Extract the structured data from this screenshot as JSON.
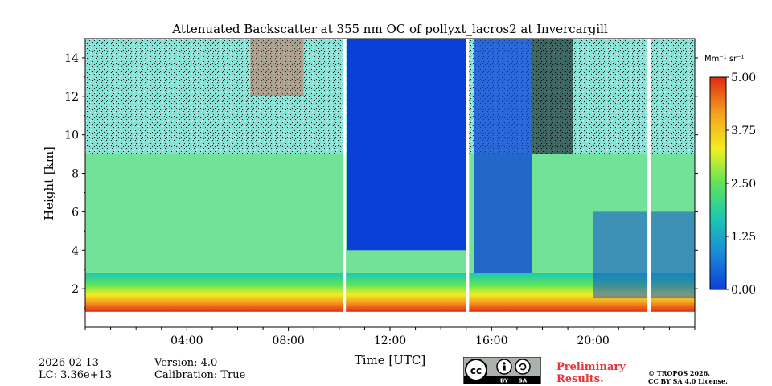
{
  "chart_data": {
    "type": "heatmap",
    "title": "Attenuated Backscatter at 355 nm OC of pollyxt_lacros2 at Invercargill",
    "xlabel": "Time [UTC]",
    "ylabel": "Height [km]",
    "x_range_hours": [
      0,
      24
    ],
    "y_range_km": [
      0,
      15
    ],
    "x_ticks": [
      {
        "value": 4,
        "label": "04:00"
      },
      {
        "value": 8,
        "label": "08:00"
      },
      {
        "value": 12,
        "label": "12:00"
      },
      {
        "value": 16,
        "label": "16:00"
      },
      {
        "value": 20,
        "label": "20:00"
      }
    ],
    "y_ticks": [
      {
        "value": 2,
        "label": "2"
      },
      {
        "value": 4,
        "label": "4"
      },
      {
        "value": 6,
        "label": "6"
      },
      {
        "value": 8,
        "label": "8"
      },
      {
        "value": 10,
        "label": "10"
      },
      {
        "value": 12,
        "label": "12"
      },
      {
        "value": 14,
        "label": "14"
      }
    ],
    "colorbar": {
      "unit": "Mm⁻¹ sr⁻¹",
      "range": [
        0,
        5
      ],
      "ticks": [
        "0.00",
        "1.25",
        "2.50",
        "3.75",
        "5.00"
      ],
      "colormap": [
        "#0a3fd8",
        "#1a8fd8",
        "#1fc8b0",
        "#5ee35a",
        "#f0f020",
        "#f5a020",
        "#e02a10"
      ]
    },
    "features": {
      "blue_low_signal_window_hours": [
        10.3,
        15.1
      ],
      "data_gaps_hours": [
        10.2,
        15.05,
        22.2
      ],
      "surface_layer_top_km": 2.5
    }
  },
  "info": {
    "date": "2026-02-13",
    "lc": "LC: 3.36e+13",
    "version": "Version: 4.0",
    "calibration": "Calibration: True"
  },
  "notice": {
    "line1": "Preliminary",
    "line2": "Results."
  },
  "copyright": {
    "line1": "© TROPOS 2026.",
    "line2": "CC BY SA 4.0 License."
  },
  "license_badge": {
    "cc": "cc",
    "by": "BY",
    "sa": "SA"
  }
}
